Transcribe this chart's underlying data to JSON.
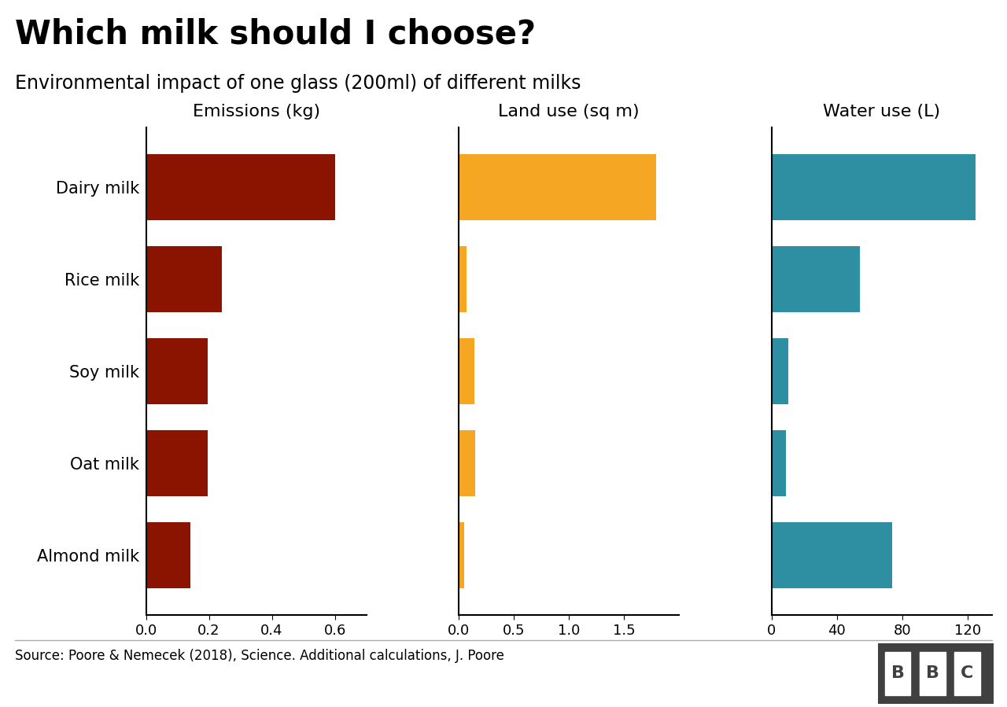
{
  "title": "Which milk should I choose?",
  "subtitle": "Environmental impact of one glass (200ml) of different milks",
  "source": "Source: Poore & Nemecek (2018), Science. Additional calculations, J. Poore",
  "categories": [
    "Dairy milk",
    "Rice milk",
    "Soy milk",
    "Oat milk",
    "Almond milk"
  ],
  "emissions": [
    0.6,
    0.24,
    0.195,
    0.195,
    0.14
  ],
  "land_use": [
    1.79,
    0.07,
    0.14,
    0.15,
    0.05
  ],
  "water_use": [
    125,
    54,
    10,
    9,
    74
  ],
  "emissions_color": "#8B1400",
  "land_use_color": "#F5A623",
  "water_use_color": "#2E8FA3",
  "emissions_label": "Emissions (kg)",
  "land_use_label": "Land use (sq m)",
  "water_use_label": "Water use (L)",
  "emissions_xlim": [
    0,
    0.7
  ],
  "land_use_xlim": [
    0,
    2.0
  ],
  "water_use_xlim": [
    0,
    135
  ],
  "emissions_xticks": [
    0.0,
    0.2,
    0.4,
    0.6
  ],
  "land_use_xticks": [
    0.0,
    0.5,
    1.0,
    1.5
  ],
  "water_use_xticks": [
    0,
    40,
    80,
    120
  ],
  "background_color": "#FFFFFF",
  "title_fontsize": 30,
  "subtitle_fontsize": 17,
  "label_fontsize": 16,
  "tick_fontsize": 13,
  "category_fontsize": 15,
  "source_fontsize": 12,
  "bar_height": 0.72,
  "bbc_logo_color": "#FFFFFF",
  "bbc_bg_color": "#404040"
}
